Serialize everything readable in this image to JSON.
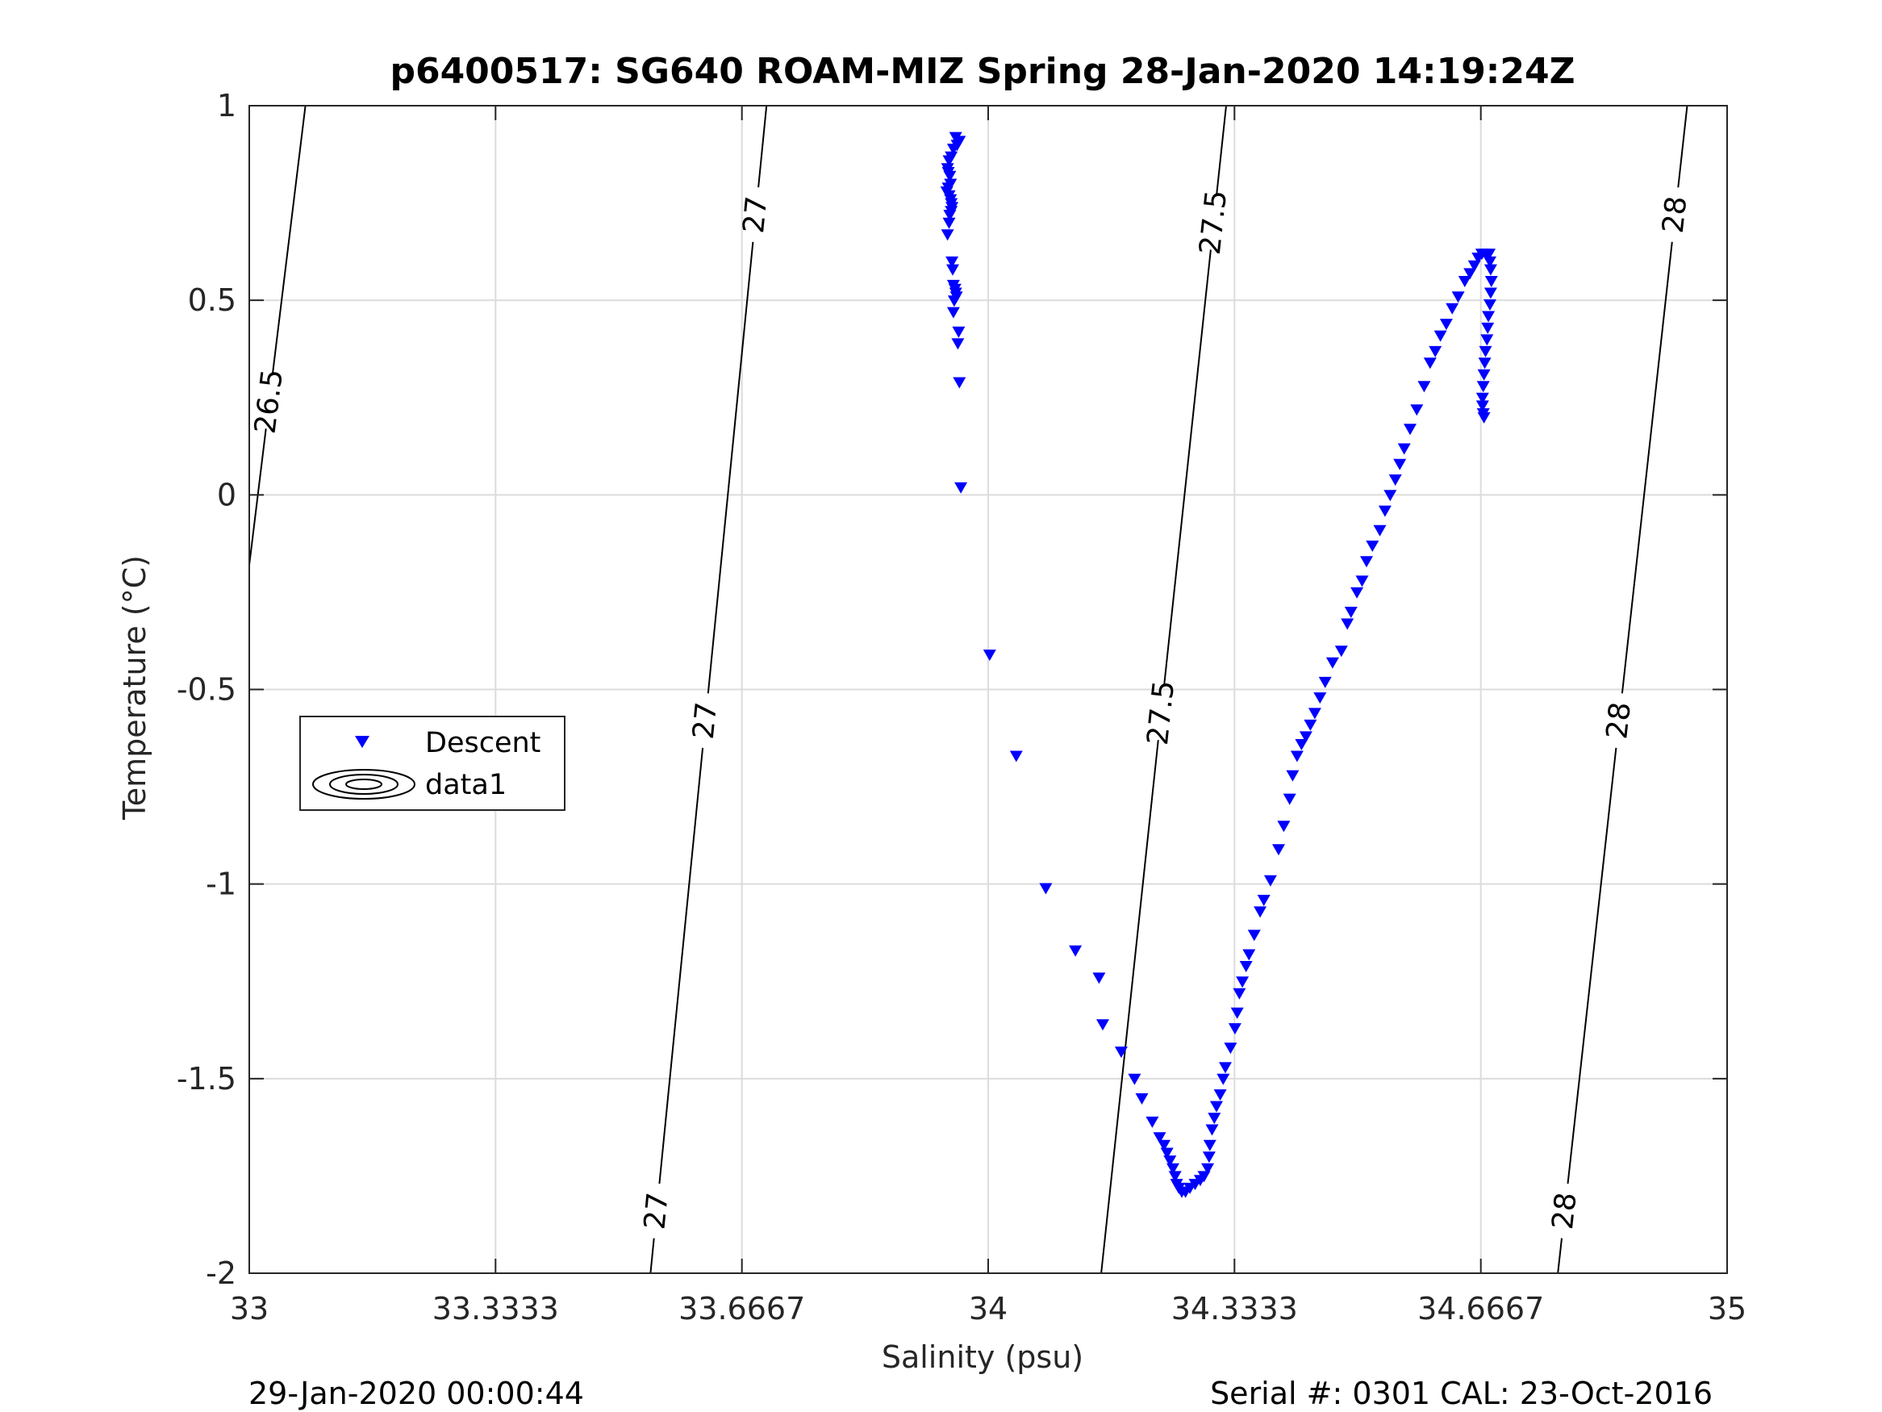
{
  "chart_data": {
    "type": "scatter",
    "title": "p6400517: SG640 ROAM-MIZ Spring 28-Jan-2020 14:19:24Z",
    "xlabel": "Salinity (psu)",
    "ylabel": "Temperature (°C)",
    "xlim": [
      33,
      35
    ],
    "ylim": [
      -2,
      1
    ],
    "xticks": [
      33,
      33.3333,
      33.6667,
      34,
      34.3333,
      34.6667,
      35
    ],
    "xtick_labels": [
      "33",
      "33.3333",
      "33.6667",
      "34",
      "34.3333",
      "34.6667",
      "35"
    ],
    "yticks": [
      -2,
      -1.5,
      -1,
      -0.5,
      0,
      0.5,
      1
    ],
    "ytick_labels": [
      "-2",
      "-1.5",
      "-1",
      "-0.5",
      "0",
      "0.5",
      "1"
    ],
    "grid": true,
    "legend": {
      "placement": "middle-left",
      "entries": [
        "Descent",
        "data1"
      ]
    },
    "footer_left": "29-Jan-2020 00:00:44",
    "footer_right": "Serial #: 0301  CAL: 23-Oct-2016",
    "marker_color": "#0000ff",
    "series": [
      {
        "name": "Descent",
        "marker": "triangle-down",
        "points": [
          [
            33.956,
            0.92
          ],
          [
            33.961,
            0.91
          ],
          [
            33.958,
            0.9
          ],
          [
            33.953,
            0.89
          ],
          [
            33.95,
            0.87
          ],
          [
            33.947,
            0.86
          ],
          [
            33.945,
            0.84
          ],
          [
            33.946,
            0.83
          ],
          [
            33.948,
            0.82
          ],
          [
            33.949,
            0.8
          ],
          [
            33.946,
            0.79
          ],
          [
            33.944,
            0.78
          ],
          [
            33.947,
            0.77
          ],
          [
            33.949,
            0.76
          ],
          [
            33.95,
            0.75
          ],
          [
            33.951,
            0.74
          ],
          [
            33.95,
            0.73
          ],
          [
            33.948,
            0.72
          ],
          [
            33.947,
            0.7
          ],
          [
            33.945,
            0.67
          ],
          [
            33.951,
            0.6
          ],
          [
            33.952,
            0.58
          ],
          [
            33.953,
            0.54
          ],
          [
            33.955,
            0.53
          ],
          [
            33.956,
            0.52
          ],
          [
            33.957,
            0.51
          ],
          [
            33.954,
            0.5
          ],
          [
            33.953,
            0.47
          ],
          [
            33.96,
            0.42
          ],
          [
            33.959,
            0.39
          ],
          [
            33.961,
            0.29
          ],
          [
            33.963,
            0.02
          ],
          [
            34.002,
            -0.41
          ],
          [
            34.038,
            -0.67
          ],
          [
            34.078,
            -1.01
          ],
          [
            34.118,
            -1.17
          ],
          [
            34.15,
            -1.24
          ],
          [
            34.155,
            -1.36
          ],
          [
            34.18,
            -1.43
          ],
          [
            34.198,
            -1.5
          ],
          [
            34.208,
            -1.55
          ],
          [
            34.222,
            -1.61
          ],
          [
            34.232,
            -1.65
          ],
          [
            34.238,
            -1.67
          ],
          [
            34.242,
            -1.69
          ],
          [
            34.246,
            -1.71
          ],
          [
            34.25,
            -1.73
          ],
          [
            34.253,
            -1.75
          ],
          [
            34.255,
            -1.77
          ],
          [
            34.258,
            -1.78
          ],
          [
            34.262,
            -1.79
          ],
          [
            34.267,
            -1.79
          ],
          [
            34.273,
            -1.78
          ],
          [
            34.28,
            -1.77
          ],
          [
            34.287,
            -1.76
          ],
          [
            34.292,
            -1.75
          ],
          [
            34.297,
            -1.73
          ],
          [
            34.299,
            -1.7
          ],
          [
            34.3,
            -1.67
          ],
          [
            34.303,
            -1.63
          ],
          [
            34.306,
            -1.6
          ],
          [
            34.309,
            -1.57
          ],
          [
            34.314,
            -1.54
          ],
          [
            34.318,
            -1.5
          ],
          [
            34.321,
            -1.47
          ],
          [
            34.328,
            -1.42
          ],
          [
            34.334,
            -1.37
          ],
          [
            34.337,
            -1.33
          ],
          [
            34.34,
            -1.28
          ],
          [
            34.344,
            -1.25
          ],
          [
            34.349,
            -1.21
          ],
          [
            34.353,
            -1.18
          ],
          [
            34.36,
            -1.13
          ],
          [
            34.368,
            -1.07
          ],
          [
            34.373,
            -1.04
          ],
          [
            34.382,
            -0.99
          ],
          [
            34.393,
            -0.91
          ],
          [
            34.4,
            -0.85
          ],
          [
            34.408,
            -0.78
          ],
          [
            34.412,
            -0.72
          ],
          [
            34.418,
            -0.67
          ],
          [
            34.424,
            -0.64
          ],
          [
            34.43,
            -0.62
          ],
          [
            34.436,
            -0.59
          ],
          [
            34.442,
            -0.56
          ],
          [
            34.449,
            -0.52
          ],
          [
            34.456,
            -0.48
          ],
          [
            34.466,
            -0.43
          ],
          [
            34.478,
            -0.4
          ],
          [
            34.486,
            -0.33
          ],
          [
            34.491,
            -0.3
          ],
          [
            34.499,
            -0.25
          ],
          [
            34.506,
            -0.22
          ],
          [
            34.512,
            -0.17
          ],
          [
            34.52,
            -0.13
          ],
          [
            34.53,
            -0.09
          ],
          [
            34.537,
            -0.04
          ],
          [
            34.544,
            0.0
          ],
          [
            34.551,
            0.04
          ],
          [
            34.557,
            0.08
          ],
          [
            34.563,
            0.12
          ],
          [
            34.571,
            0.17
          ],
          [
            34.58,
            0.22
          ],
          [
            34.59,
            0.28
          ],
          [
            34.598,
            0.34
          ],
          [
            34.605,
            0.37
          ],
          [
            34.612,
            0.41
          ],
          [
            34.62,
            0.44
          ],
          [
            34.628,
            0.48
          ],
          [
            34.636,
            0.51
          ],
          [
            34.645,
            0.55
          ],
          [
            34.652,
            0.57
          ],
          [
            34.658,
            0.59
          ],
          [
            34.663,
            0.61
          ],
          [
            34.668,
            0.62
          ],
          [
            34.673,
            0.62
          ],
          [
            34.678,
            0.62
          ],
          [
            34.679,
            0.6
          ],
          [
            34.68,
            0.58
          ],
          [
            34.681,
            0.55
          ],
          [
            34.68,
            0.52
          ],
          [
            34.679,
            0.49
          ],
          [
            34.677,
            0.46
          ],
          [
            34.676,
            0.43
          ],
          [
            34.675,
            0.4
          ],
          [
            34.673,
            0.37
          ],
          [
            34.672,
            0.34
          ],
          [
            34.671,
            0.31
          ],
          [
            34.67,
            0.28
          ],
          [
            34.669,
            0.25
          ],
          [
            34.669,
            0.23
          ],
          [
            34.67,
            0.21
          ],
          [
            34.671,
            0.2
          ]
        ]
      }
    ],
    "contours": [
      {
        "level": "26.5",
        "labels_at_y": [
          0.24
        ],
        "points": [
          [
            33.076,
            1
          ],
          [
            33.0,
            -0.18
          ]
        ]
      },
      {
        "level": "27",
        "labels_at_y": [
          0.72,
          -0.58,
          -1.84
        ],
        "points": [
          [
            33.7,
            1
          ],
          [
            33.543,
            -2
          ]
        ]
      },
      {
        "level": "27.5",
        "labels_at_y": [
          0.7,
          -0.56
        ],
        "points": [
          [
            34.322,
            1
          ],
          [
            34.153,
            -2
          ]
        ]
      },
      {
        "level": "28",
        "labels_at_y": [
          0.72,
          -0.58,
          -1.84
        ],
        "points": [
          [
            34.946,
            1
          ],
          [
            34.771,
            -2
          ]
        ]
      }
    ]
  }
}
